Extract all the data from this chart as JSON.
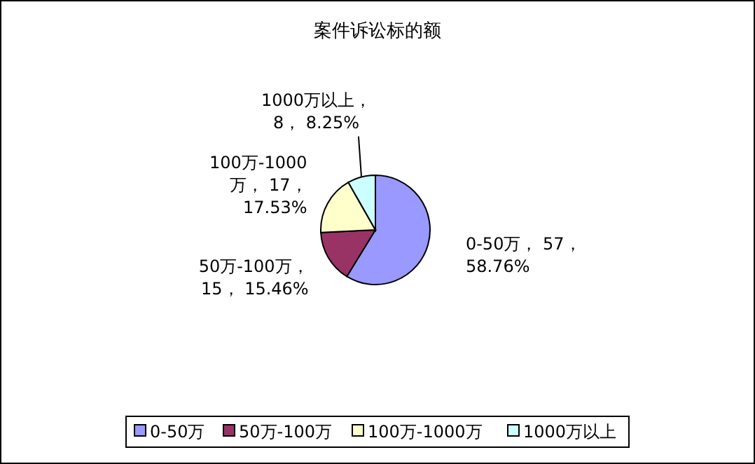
{
  "chart_data": {
    "type": "pie",
    "title": "案件诉讼标的额",
    "categories": [
      "0-50万",
      "50万-100万",
      "100万-1000万",
      "1000万以上"
    ],
    "values": [
      57,
      15,
      17,
      8
    ],
    "colors": [
      "#9999ff",
      "#993366",
      "#ffffcc",
      "#ccffff"
    ],
    "value_labels": [
      "0-50万， 57，\n58.76%",
      "50万-100万，\n15， 15.46%",
      "100万-1000\n万， 17，\n17.53%",
      "1000万以上，\n8， 8.25%"
    ],
    "legend": "bottom"
  }
}
